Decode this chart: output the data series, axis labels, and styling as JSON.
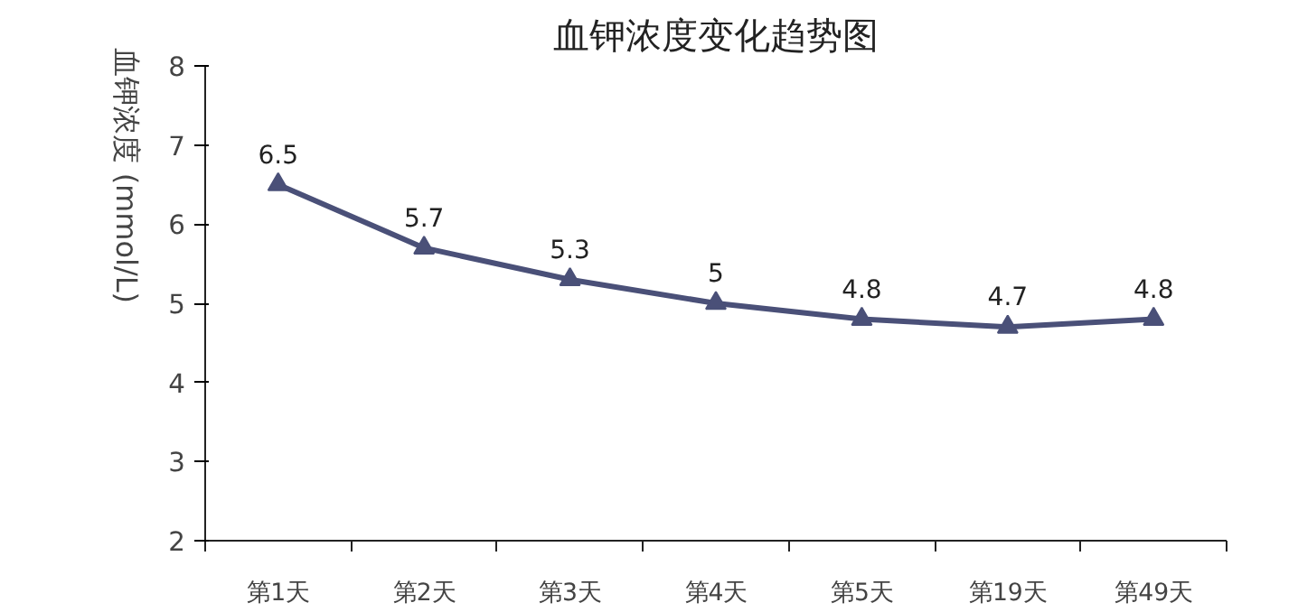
{
  "chart_data": {
    "type": "line",
    "title": "血钾浓度变化趋势图",
    "ylabel": "血钾浓度 (mmol/L)",
    "categories": [
      "第1天",
      "第2天",
      "第3天",
      "第4天",
      "第5天",
      "第19天",
      "第49天"
    ],
    "series": [
      {
        "color": "#4a5078",
        "values": [
          6.5,
          5.7,
          5.3,
          5,
          4.8,
          4.7,
          4.8
        ]
      }
    ],
    "ylim": [
      2,
      8
    ],
    "yticks": [
      2,
      3,
      4,
      5,
      6,
      7,
      8
    ],
    "grid": false,
    "marker": "triangle",
    "line_style": "solid",
    "data_labels": true
  }
}
